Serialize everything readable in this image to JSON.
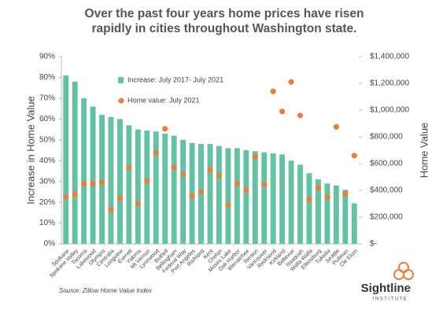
{
  "chart_data": {
    "type": "bar",
    "title": "Over the past four years home prices have risen rapidly in cities throughout Washington state.",
    "y_label": "Increase in Home Value",
    "y2_label": "Home Value",
    "source": "Source: Zillow Home Value Index",
    "logo": {
      "name": "Sightline",
      "sub": "INSTITUTE"
    },
    "legend": "upper left",
    "categories": [
      "Spokane",
      "Spokane Valley",
      "Tacoma",
      "Lakewood",
      "Olympia",
      "Centralia",
      "Longview",
      "Everett",
      "Yakima",
      "Mt Vernon",
      "Lynnwood",
      "Bothell",
      "Bellingham",
      "Federal Way",
      "Port Angeles",
      "Richland",
      "Kent",
      "Chelan",
      "Moses Lake",
      "Oak Harbor",
      "Wenatchee",
      "Renton",
      "Vancouver",
      "Redmond",
      "Kirkland",
      "Bellevue",
      "Issaquah",
      "Walla Walla",
      "Ellensburg",
      "Tukwila",
      "Seattle",
      "Pullman",
      "Cle Elum"
    ],
    "series": [
      {
        "name": "Increase: July 2017- July 2021",
        "type": "bar",
        "color": "#62c2a2",
        "values": [
          81,
          78,
          70,
          66,
          62,
          61,
          60,
          57,
          55,
          54.5,
          54,
          53,
          52,
          50,
          48.5,
          48,
          48,
          47,
          46,
          46,
          45,
          44.5,
          44,
          43.5,
          43,
          40,
          38,
          34,
          31,
          29,
          28,
          26,
          19.5
        ]
      },
      {
        "name": "Home value: July 2021",
        "type": "scatter",
        "axis": "y2",
        "color": "#e8803a",
        "values": [
          350000,
          370000,
          450000,
          450000,
          460000,
          255000,
          340000,
          570000,
          300000,
          470000,
          680000,
          860000,
          570000,
          520000,
          360000,
          390000,
          555000,
          510000,
          290000,
          450000,
          400000,
          650000,
          445000,
          1140000,
          990000,
          1210000,
          960000,
          330000,
          420000,
          350000,
          875000,
          375000,
          660000
        ]
      }
    ],
    "ylim": [
      0,
      90
    ],
    "yticks": [
      {
        "value": 0,
        "label": "0%"
      },
      {
        "value": 10,
        "label": "10%"
      },
      {
        "value": 20,
        "label": "20%"
      },
      {
        "value": 30,
        "label": "30%"
      },
      {
        "value": 40,
        "label": "40%"
      },
      {
        "value": 50,
        "label": "50%"
      },
      {
        "value": 60,
        "label": "60%"
      },
      {
        "value": 70,
        "label": "70%"
      },
      {
        "value": 80,
        "label": "80%"
      },
      {
        "value": 90,
        "label": "90%"
      }
    ],
    "y2lim": [
      0,
      1400000
    ],
    "y2ticks": [
      {
        "value": 0,
        "label": "$-"
      },
      {
        "value": 200000,
        "label": "$200,000"
      },
      {
        "value": 400000,
        "label": "$400,000"
      },
      {
        "value": 600000,
        "label": "$600,000"
      },
      {
        "value": 800000,
        "label": "$800,000"
      },
      {
        "value": 1000000,
        "label": "$1,000,000"
      },
      {
        "value": 1200000,
        "label": "$1,200,000"
      },
      {
        "value": 1400000,
        "label": "$1,400,000"
      }
    ],
    "grid": false
  }
}
